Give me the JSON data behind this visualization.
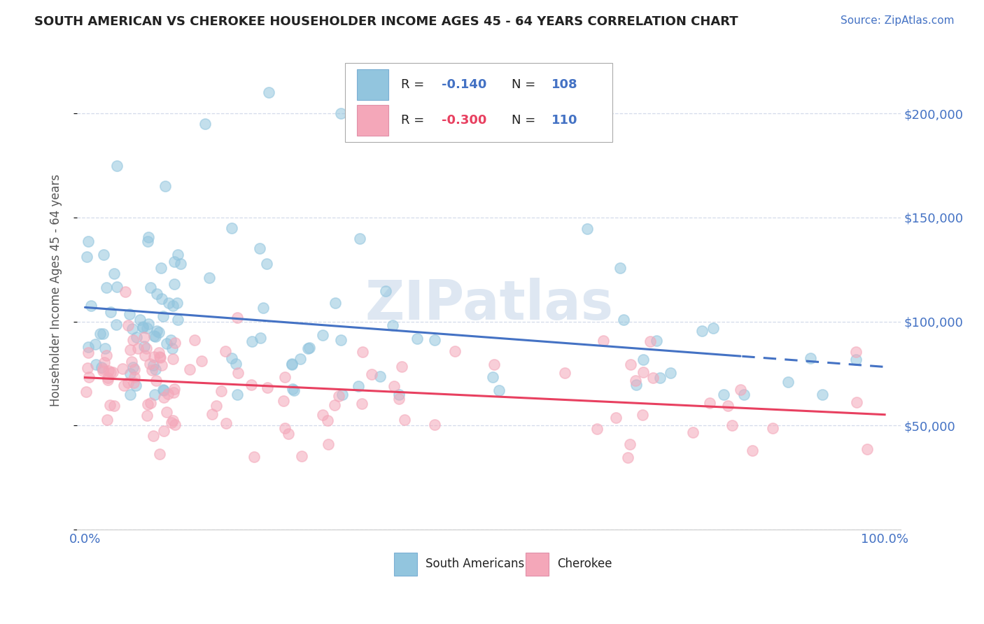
{
  "title": "SOUTH AMERICAN VS CHEROKEE HOUSEHOLDER INCOME AGES 45 - 64 YEARS CORRELATION CHART",
  "source": "Source: ZipAtlas.com",
  "ylabel": "Householder Income Ages 45 - 64 years",
  "legend1_r": "-0.140",
  "legend1_n": "108",
  "legend2_r": "-0.300",
  "legend2_n": "110",
  "south_american_color": "#92c5de",
  "cherokee_color": "#f4a7b9",
  "trend_blue": "#4472c4",
  "trend_pink": "#e84060",
  "watermark_color": "#c8d8ea",
  "title_color": "#222222",
  "source_color": "#4472c4",
  "axis_label_color": "#4472c4",
  "ylabel_color": "#555555",
  "grid_color": "#d0d8e8",
  "legend_border_color": "#aaaaaa",
  "background": "#ffffff"
}
